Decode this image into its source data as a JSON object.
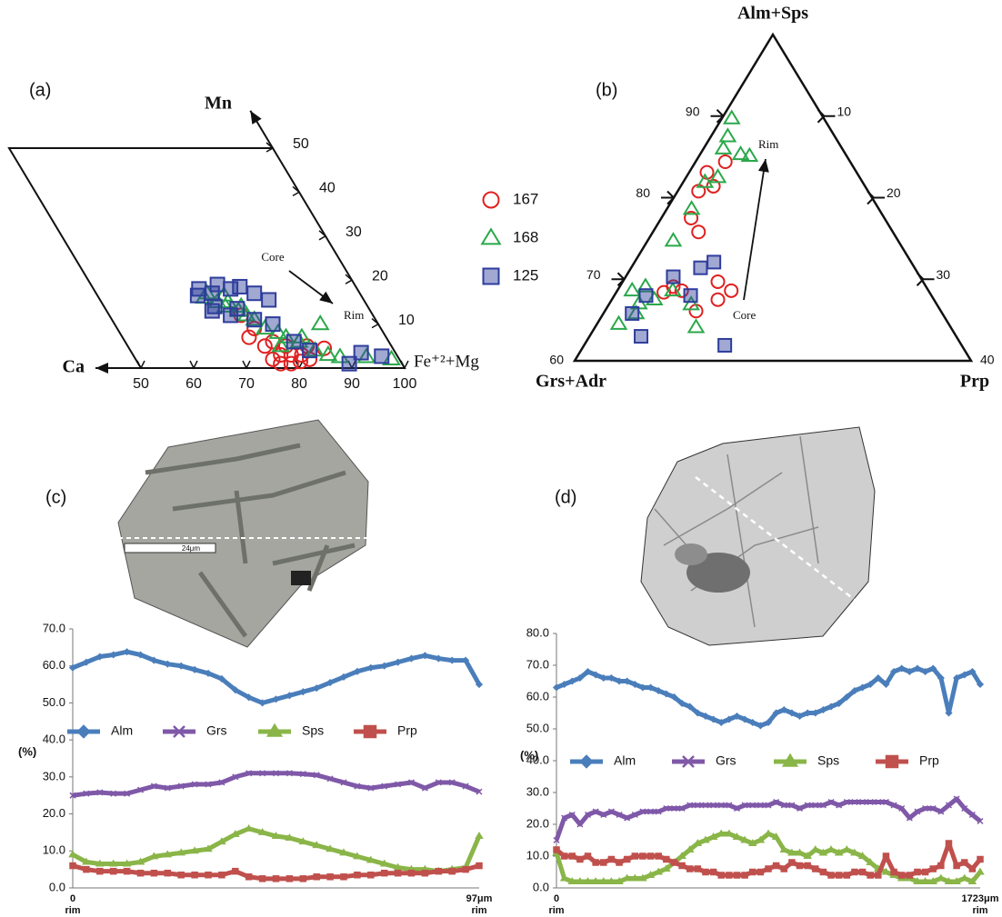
{
  "chart_data": [
    {
      "type": "parallelogram",
      "label": "(a)",
      "ylabel": "Mn",
      "x_origin_label": "Ca",
      "xlabel": "Fe⁺²+Mg",
      "xlim": [
        50,
        100
      ],
      "xticks": [
        50,
        60,
        70,
        80,
        90,
        100
      ],
      "ylim": [
        0,
        50
      ],
      "yticks": [
        10,
        20,
        30,
        40,
        50
      ],
      "annotations": [
        "Core",
        "Rim"
      ],
      "series": [
        {
          "name": "167",
          "marker": "circle",
          "color": "#e02020",
          "x": [
            75,
            76,
            76,
            78,
            80,
            82,
            84,
            87,
            76,
            77,
            79,
            81,
            78,
            80,
            74,
            83
          ],
          "values": [
            12,
            9,
            5,
            3,
            3,
            3,
            5,
            4.5,
            2,
            1,
            1,
            1.5,
            6,
            5,
            7,
            2
          ]
        },
        {
          "name": "168",
          "marker": "triangle",
          "color": "#2aa84a",
          "x": [
            70,
            71,
            72,
            73,
            74,
            75,
            76,
            77,
            78,
            80,
            81,
            83,
            85,
            87,
            89,
            89,
            94,
            98.5,
            79,
            76,
            74,
            84
          ],
          "values": [
            16,
            17,
            15,
            14,
            15,
            13,
            12,
            11,
            9,
            8,
            7,
            6,
            4,
            3,
            10,
            2.5,
            2.5,
            2,
            5,
            14,
            16.5,
            7
          ]
        },
        {
          "name": "125",
          "marker": "square",
          "color": "#2e3d9c",
          "x": [
            69,
            70,
            72,
            74,
            76,
            78,
            80,
            82,
            71,
            70,
            73,
            75,
            77,
            80,
            84,
            93.5,
            97,
            90,
            82
          ],
          "values": [
            16.5,
            18,
            17,
            19,
            18,
            18.5,
            17,
            15.5,
            14,
            13,
            12,
            13.5,
            11,
            10,
            4,
            3.5,
            2.7,
            1,
            6
          ]
        }
      ]
    },
    {
      "type": "ternary",
      "label": "(b)",
      "corner_labels": [
        "Alm+Sps",
        "Grs+Adr",
        "Prp"
      ],
      "xlim": [
        0,
        40
      ],
      "xticks": [
        10,
        20,
        30,
        40
      ],
      "ylim": [
        60,
        100
      ],
      "yticks": [
        60,
        70,
        80,
        90
      ],
      "annotations": [
        "Rim",
        "Core"
      ],
      "series": [
        {
          "marker": "circle",
          "color": "#e02020",
          "x": [
            3.0,
            1.8,
            2.1,
            3.3,
            3.0,
            4.6,
            9.6,
            11.5,
            10.7,
            5.4,
            9.2,
            4.8,
            6.5
          ],
          "values": [
            84.4,
            83.1,
            80.8,
            81.4,
            77.5,
            75.8,
            69.7,
            68.6,
            67.5,
            69.1,
            66.1,
            68.4,
            68.6
          ]
        },
        {
          "marker": "triangle",
          "color": "#2aa84a",
          "x": [
            1.0,
            4.1,
            1.7,
            3.2,
            2.2,
            5.1,
            2.5,
            2.6,
            3.3,
            4.3,
            5.6,
            8.3,
            10.2,
            2.6,
            1.5,
            2.0,
            3.0,
            2.2
          ],
          "values": [
            89.7,
            85.3,
            87.5,
            82.5,
            81.9,
            85.1,
            78.6,
            74.7,
            65.8,
            67.5,
            68.6,
            66.9,
            64.1,
            69.1,
            68.6,
            86.0,
            67.0,
            64.5
          ]
        },
        {
          "marker": "square",
          "color": "#2e3d9c",
          "x": [
            8.0,
            7.0,
            2.9,
            5.2,
            4.8,
            7.7,
            14.2,
            3.2
          ],
          "values": [
            72.1,
            71.4,
            65.8,
            63.0,
            70.3,
            68.0,
            61.9,
            68.0
          ]
        }
      ]
    },
    {
      "type": "line",
      "label": "(c)",
      "ylabel": "(%)",
      "image_scale_label": "24μm",
      "categories": [
        "0",
        null,
        null,
        null,
        null,
        null,
        null,
        null,
        null,
        null,
        null,
        null,
        null,
        null,
        null,
        null,
        null,
        null,
        null,
        null,
        null,
        null,
        null,
        null,
        null,
        null,
        null,
        null,
        null,
        null,
        "97μm"
      ],
      "end_labels": [
        "rim",
        "rim"
      ],
      "ylim": [
        0,
        70
      ],
      "yticks": [
        {
          "value": 0,
          "label": "0.0"
        },
        {
          "value": 10,
          "label": "10.0"
        },
        {
          "value": 20,
          "label": "20.0"
        },
        {
          "value": 30,
          "label": "30.0"
        },
        {
          "value": 40,
          "label": "40.0"
        },
        {
          "value": 50,
          "label": "50.0"
        },
        {
          "value": 60,
          "label": "60.0"
        },
        {
          "value": 70,
          "label": "70.0"
        }
      ],
      "series": [
        {
          "name": "Alm",
          "marker": "diamond",
          "color": "#4a7ebb",
          "values": [
            59.5,
            61,
            62.5,
            63,
            63.8,
            63,
            61.5,
            60.5,
            60,
            59,
            58,
            56.5,
            53.5,
            51.5,
            50,
            51,
            52,
            53,
            54,
            55.5,
            57,
            58.5,
            59.5,
            60,
            61,
            62,
            62.8,
            62,
            61.5,
            61.5,
            55
          ]
        },
        {
          "name": "Grs",
          "marker": "x",
          "color": "#7f58a8",
          "values": [
            25,
            25.5,
            25.8,
            25.5,
            25.5,
            26.5,
            27.5,
            27,
            27.5,
            28,
            28,
            28.5,
            30,
            31,
            31,
            31,
            31,
            30.8,
            30.5,
            29.5,
            28.5,
            27.5,
            27,
            27.5,
            28,
            28.5,
            27,
            28.5,
            28.5,
            27.5,
            26
          ]
        },
        {
          "name": "Sps",
          "marker": "triangle",
          "color": "#8ab548",
          "values": [
            9,
            7,
            6.5,
            6.5,
            6.5,
            7,
            8.5,
            9,
            9.5,
            10,
            10.5,
            12.5,
            14.5,
            16,
            15,
            14,
            13.5,
            12.5,
            11.5,
            10.5,
            9.5,
            8.5,
            7.5,
            6.5,
            5.5,
            5,
            5,
            4.5,
            5,
            5.5,
            14
          ]
        },
        {
          "name": "Prp",
          "marker": "square",
          "color": "#c0504d",
          "values": [
            6,
            5,
            4.5,
            4.5,
            4.5,
            4,
            4,
            4,
            3.5,
            3.5,
            3.5,
            3.5,
            4.5,
            3,
            2.5,
            2.5,
            2.5,
            2.5,
            3,
            3,
            3,
            3.5,
            3.5,
            4,
            4,
            4,
            4,
            4.5,
            4.5,
            5,
            6
          ]
        }
      ]
    },
    {
      "type": "line",
      "label": "(d)",
      "ylabel": "(%)",
      "categories": [
        "0",
        null,
        null,
        null,
        null,
        null,
        null,
        null,
        null,
        null,
        null,
        null,
        null,
        null,
        null,
        null,
        null,
        null,
        null,
        null,
        null,
        null,
        null,
        null,
        null,
        null,
        null,
        null,
        null,
        null,
        null,
        null,
        null,
        null,
        null,
        null,
        null,
        null,
        null,
        null,
        null,
        null,
        null,
        null,
        null,
        null,
        null,
        null,
        null,
        null,
        null,
        null,
        null,
        null,
        "1723μm"
      ],
      "end_labels": [
        "rim",
        "rim"
      ],
      "ylim": [
        0,
        80
      ],
      "yticks": [
        {
          "value": 0,
          "label": "0.0"
        },
        {
          "value": 10,
          "label": "10.0"
        },
        {
          "value": 20,
          "label": "20.0"
        },
        {
          "value": 30,
          "label": "30.0"
        },
        {
          "value": 40,
          "label": "40.0"
        },
        {
          "value": 50,
          "label": "50.0"
        },
        {
          "value": 60,
          "label": "60.0"
        },
        {
          "value": 70,
          "label": "70.0"
        },
        {
          "value": 80,
          "label": "80.0"
        }
      ],
      "series": [
        {
          "name": "Alm",
          "marker": "diamond",
          "color": "#4a7ebb",
          "values": [
            63,
            64,
            65,
            66,
            68,
            67,
            66,
            66,
            65,
            65,
            64,
            63,
            63,
            62,
            61,
            60,
            58,
            57,
            55,
            54,
            53,
            52,
            53,
            54,
            53,
            52,
            51,
            52,
            55,
            56,
            55,
            54,
            55,
            55,
            56,
            57,
            58,
            60,
            62,
            63,
            64,
            66,
            64,
            68,
            69,
            68,
            69,
            68,
            69,
            66,
            55,
            66,
            67,
            68,
            64
          ]
        },
        {
          "name": "Grs",
          "marker": "x",
          "color": "#7f58a8",
          "values": [
            15,
            22,
            23,
            20,
            23,
            24,
            23,
            24,
            23,
            22,
            23,
            24,
            24,
            24,
            25,
            25,
            25,
            26,
            26,
            26,
            26,
            26,
            26,
            25,
            26,
            26,
            26,
            26,
            27,
            26,
            26,
            25,
            26,
            26,
            26,
            27,
            26,
            27,
            27,
            27,
            27,
            27,
            27,
            26,
            25,
            22,
            24,
            25,
            25,
            24,
            26,
            28,
            25,
            23,
            21
          ]
        },
        {
          "name": "Sps",
          "marker": "triangle",
          "color": "#8ab548",
          "values": [
            11,
            3,
            2,
            2,
            2,
            2,
            2,
            2,
            2,
            3,
            3,
            3,
            4,
            5,
            6,
            8,
            10,
            12,
            14,
            15,
            16,
            17,
            17,
            16,
            15,
            14,
            15,
            17,
            16,
            12,
            11,
            11,
            10,
            12,
            11,
            12,
            11,
            12,
            11,
            10,
            8,
            6,
            5,
            4,
            3,
            3,
            2,
            2,
            2,
            3,
            2,
            2,
            3,
            2,
            5
          ]
        },
        {
          "name": "Prp",
          "marker": "square",
          "color": "#c0504d",
          "values": [
            12,
            10,
            10,
            9,
            10,
            8,
            8,
            9,
            8,
            9,
            10,
            10,
            10,
            10,
            9,
            8,
            7,
            6,
            6,
            5,
            5,
            4,
            4,
            4,
            4,
            5,
            5,
            6,
            7,
            6,
            8,
            7,
            7,
            6,
            5,
            4,
            4,
            4,
            5,
            5,
            4,
            4,
            10,
            5,
            4,
            4,
            5,
            5,
            6,
            7,
            14,
            7,
            8,
            6,
            9
          ]
        }
      ]
    }
  ]
}
